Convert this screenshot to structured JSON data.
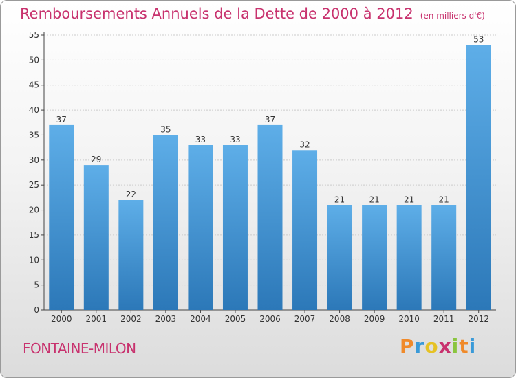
{
  "title": "Remboursements Annuels de la Dette de 2000 à 2012",
  "unit_note": "(en milliers d'€)",
  "commune": "FONTAINE-MILON",
  "logo": {
    "text": "Proxiti",
    "letters": [
      "P",
      "r",
      "o",
      "x",
      "i",
      "t",
      "i"
    ]
  },
  "colors": {
    "bar_light": "#5eaee8",
    "bar_dark": "#2c78b8",
    "title": "#c8326e",
    "axis": "#444444",
    "grid": "#cccccc"
  },
  "chart_data": {
    "type": "bar",
    "title": "Remboursements Annuels de la Dette de 2000 à 2012",
    "ylabel": "en milliers d'€",
    "xlabel": "",
    "categories": [
      "2000",
      "2001",
      "2002",
      "2003",
      "2004",
      "2005",
      "2006",
      "2007",
      "2008",
      "2009",
      "2010",
      "2011",
      "2012"
    ],
    "values": [
      37,
      29,
      22,
      35,
      33,
      33,
      37,
      32,
      21,
      21,
      21,
      21,
      53
    ],
    "ylim": [
      0,
      55
    ],
    "yticks": [
      0,
      5,
      10,
      15,
      20,
      25,
      30,
      35,
      40,
      45,
      50,
      55
    ]
  }
}
